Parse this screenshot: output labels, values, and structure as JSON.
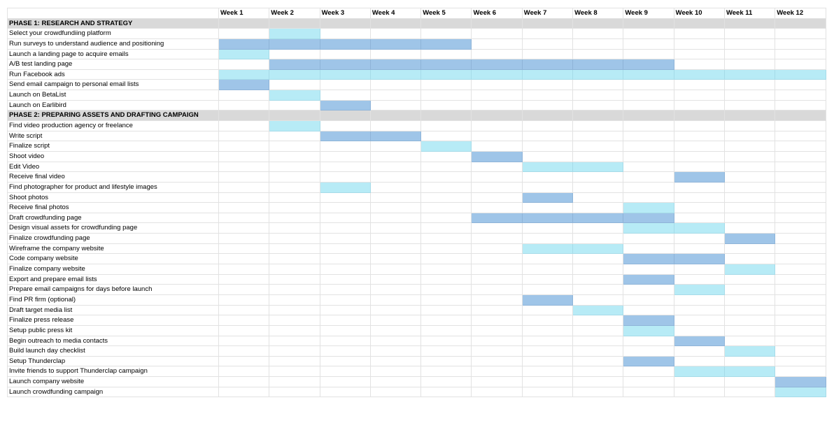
{
  "colors": {
    "dark_bar": "#9fc5e8",
    "light_bar": "#b7ebf6",
    "phase_fill": "#d9d9d9",
    "grid": "#e2e2e2"
  },
  "weeks": [
    "Week 1",
    "Week 2",
    "Week 3",
    "Week 4",
    "Week 5",
    "Week 6",
    "Week 7",
    "Week 8",
    "Week 9",
    "Week 10",
    "Week 11",
    "Week 12"
  ],
  "rows": [
    {
      "type": "phase",
      "label": "PHASE 1: RESEARCH AND STRATEGY"
    },
    {
      "label": "Select your crowdfundiing platform",
      "start": 2,
      "end": 2,
      "color": "light"
    },
    {
      "label": "Run surveys to understand audience and positioning",
      "start": 1,
      "end": 5,
      "color": "dark"
    },
    {
      "label": "Launch a landing page to acquire emails",
      "start": 1,
      "end": 1,
      "color": "light"
    },
    {
      "label": "A/B test landing page",
      "start": 2,
      "end": 9,
      "color": "dark"
    },
    {
      "label": "Run Facebook ads",
      "start": 1,
      "end": 12,
      "color": "light"
    },
    {
      "label": "Send email campaign to personal email lists",
      "start": 1,
      "end": 1,
      "color": "dark"
    },
    {
      "label": "Launch on BetaList",
      "start": 2,
      "end": 2,
      "color": "light"
    },
    {
      "label": "Launch on Earlibird",
      "start": 3,
      "end": 3,
      "color": "dark"
    },
    {
      "type": "phase",
      "label": "PHASE 2: PREPARING ASSETS AND DRAFTING CAMPAIGN"
    },
    {
      "label": "Find video production agency or freelance",
      "start": 2,
      "end": 2,
      "color": "light"
    },
    {
      "label": "Write script",
      "start": 3,
      "end": 4,
      "color": "dark"
    },
    {
      "label": "Finalize script",
      "start": 5,
      "end": 5,
      "color": "light"
    },
    {
      "label": "Shoot video",
      "start": 6,
      "end": 6,
      "color": "dark"
    },
    {
      "label": "Edit Video",
      "start": 7,
      "end": 8,
      "color": "light"
    },
    {
      "label": "Receive final video",
      "start": 10,
      "end": 10,
      "color": "dark"
    },
    {
      "label": "Find photographer for product and lifestyle images",
      "start": 3,
      "end": 3,
      "color": "light"
    },
    {
      "label": "Shoot photos",
      "start": 7,
      "end": 7,
      "color": "dark"
    },
    {
      "label": "Receive final photos",
      "start": 9,
      "end": 9,
      "color": "light"
    },
    {
      "label": "Draft crowdfunding page",
      "start": 6,
      "end": 9,
      "color": "dark"
    },
    {
      "label": "Design visual assets for crowdfunding page",
      "start": 9,
      "end": 10,
      "color": "light"
    },
    {
      "label": "Finalize crowdfunding page",
      "start": 11,
      "end": 11,
      "color": "dark"
    },
    {
      "label": "Wireframe the company website",
      "start": 7,
      "end": 8,
      "color": "light"
    },
    {
      "label": "Code company website",
      "start": 9,
      "end": 10,
      "color": "dark"
    },
    {
      "label": "Finalize company website",
      "start": 11,
      "end": 11,
      "color": "light"
    },
    {
      "label": "Export and prepare email lists",
      "start": 9,
      "end": 9,
      "color": "dark"
    },
    {
      "label": "Prepare email campaigns for days before launch",
      "start": 10,
      "end": 10,
      "color": "light"
    },
    {
      "label": "Find PR firm (optional)",
      "start": 7,
      "end": 7,
      "color": "dark"
    },
    {
      "label": "Draft target media list",
      "start": 8,
      "end": 8,
      "color": "light"
    },
    {
      "label": "Finalize press release",
      "start": 9,
      "end": 9,
      "color": "dark"
    },
    {
      "label": "Setup public press kit",
      "start": 9,
      "end": 9,
      "color": "light"
    },
    {
      "label": "Begin outreach to media contacts",
      "start": 10,
      "end": 10,
      "color": "dark"
    },
    {
      "label": "Build launch day checklist",
      "start": 11,
      "end": 11,
      "color": "light"
    },
    {
      "label": "Setup Thunderclap",
      "start": 9,
      "end": 9,
      "color": "dark"
    },
    {
      "label": "Invite friends to support Thunderclap campaign",
      "start": 10,
      "end": 11,
      "color": "light"
    },
    {
      "label": "Launch company website",
      "start": 12,
      "end": 12,
      "color": "dark"
    },
    {
      "label": "Launch crowdfunding campaign",
      "start": 12,
      "end": 12,
      "color": "light"
    }
  ]
}
